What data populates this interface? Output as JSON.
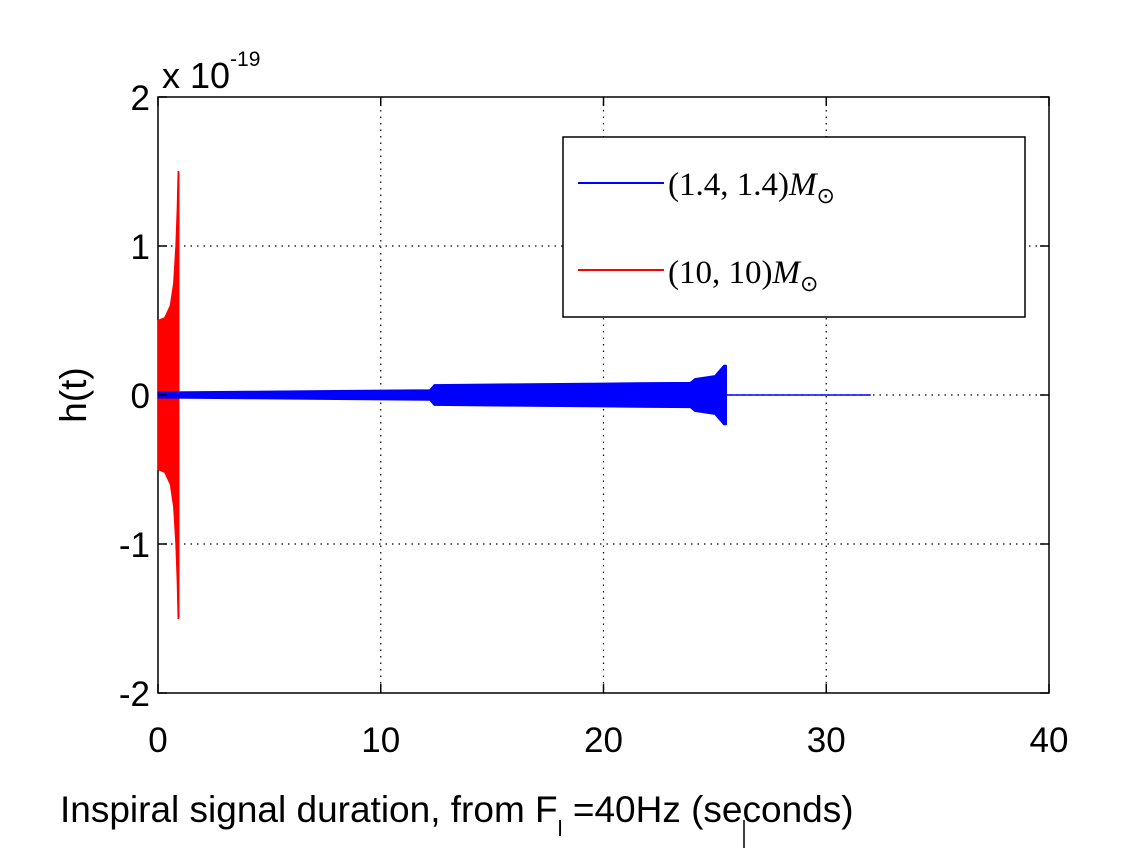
{
  "chart_data": {
    "type": "line",
    "title": "",
    "xlabel": {
      "main": "Inspiral signal duration, from F",
      "subscript": "l",
      "rest": " =40Hz (seconds)"
    },
    "ylabel": "h(t)",
    "xlim": [
      0,
      40
    ],
    "ylim": [
      -2,
      2
    ],
    "x_ticks": [
      "0",
      "10",
      "20",
      "30",
      "40"
    ],
    "y_ticks": [
      "2",
      "1",
      "0",
      "-1",
      "-2"
    ],
    "y_multiplier": {
      "base": "x 10",
      "exponent": "-19"
    },
    "grid": true,
    "legend_position": "top-right",
    "series": [
      {
        "name": "(1.4, 1.4)M⊙",
        "name_parts": {
          "prefix": "(1.4, 1.4)",
          "symbol": "M",
          "sub": "⊙"
        },
        "color": "#0000ff",
        "signal": {
          "start": 0,
          "coalescence": 25.5,
          "data_end": 32,
          "envelope": [
            [
              0,
              0.02
            ],
            [
              4,
              0.025
            ],
            [
              8,
              0.03
            ],
            [
              12.2,
              0.035
            ],
            [
              12.4,
              0.07
            ],
            [
              16,
              0.075
            ],
            [
              20,
              0.08
            ],
            [
              23.9,
              0.085
            ],
            [
              24.1,
              0.11
            ],
            [
              25.0,
              0.13
            ],
            [
              25.4,
              0.2
            ],
            [
              25.5,
              0.2
            ]
          ],
          "tail_end": 32
        }
      },
      {
        "name": "(10, 10)M⊙",
        "name_parts": {
          "prefix": "(10, 10)",
          "symbol": "M",
          "sub": "⊙"
        },
        "color": "#ff0000",
        "signal": {
          "start": 0,
          "coalescence": 0.9,
          "data_end": 4,
          "envelope": [
            [
              0,
              0.5
            ],
            [
              0.3,
              0.52
            ],
            [
              0.55,
              0.6
            ],
            [
              0.7,
              0.75
            ],
            [
              0.8,
              1.0
            ],
            [
              0.86,
              1.25
            ],
            [
              0.9,
              1.5
            ],
            [
              0.92,
              1.5
            ]
          ],
          "tail_end": 4
        }
      }
    ]
  }
}
